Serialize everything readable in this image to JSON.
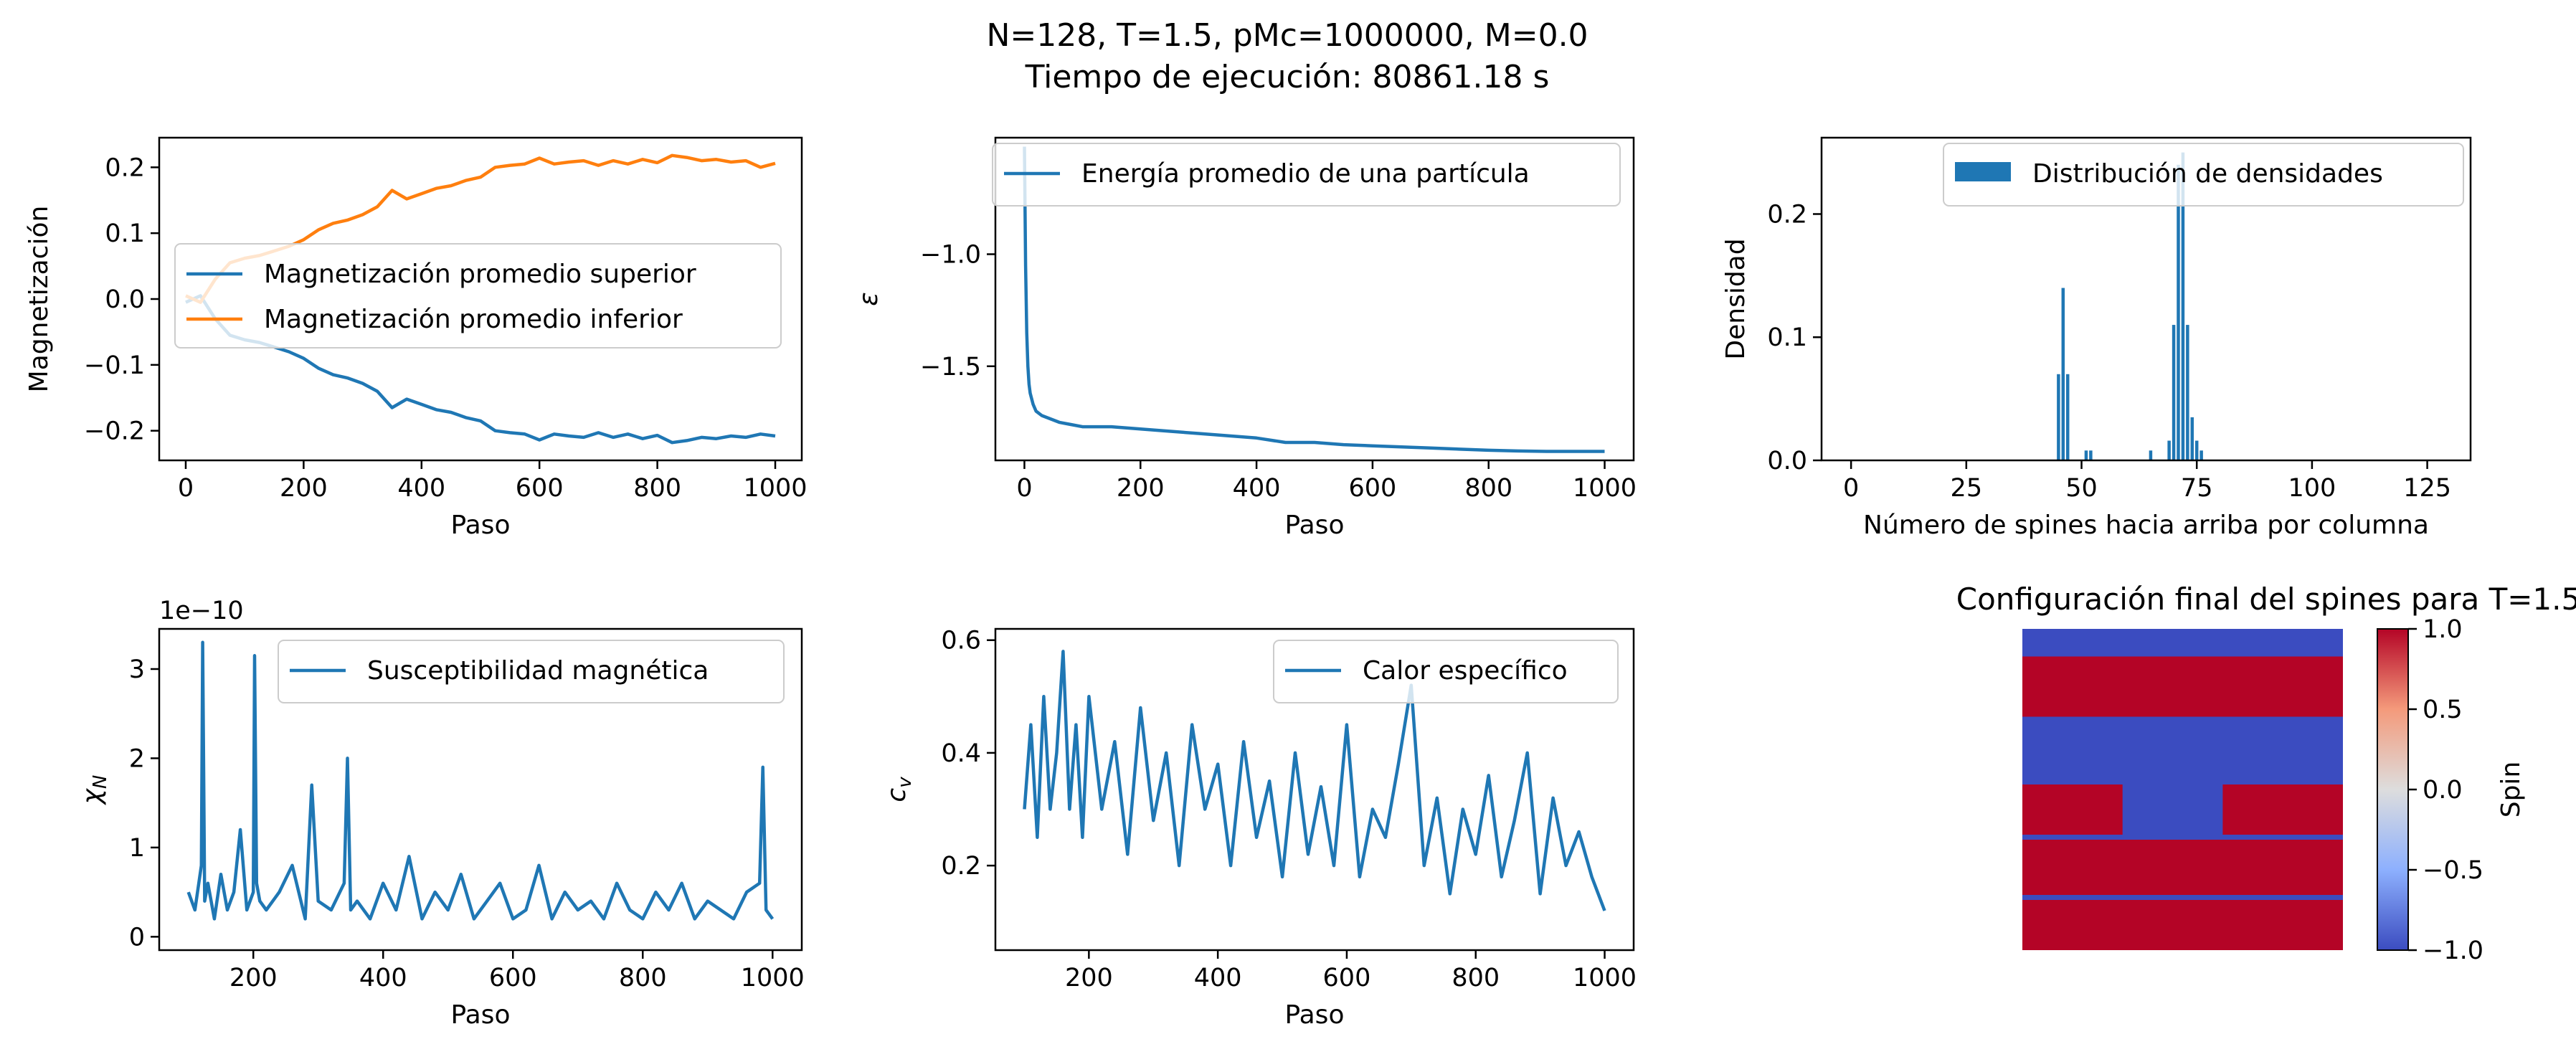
{
  "figure": {
    "title_line1": "N=128, T=1.5, pMc=1000000, M=0.0",
    "title_line2": "Tiempo de ejecución: 80861.18 s"
  },
  "colors": {
    "blue": "#1f77b4",
    "orange": "#ff7f0e",
    "spin_up": "#b40426",
    "spin_down": "#3b4cc0"
  },
  "chart_data": [
    {
      "id": "magnetization",
      "type": "line",
      "xlabel": "Paso",
      "ylabel": "Magnetización",
      "xlim": [
        -45,
        1045
      ],
      "ylim": [
        -0.245,
        0.245
      ],
      "xticks": [
        0,
        200,
        400,
        600,
        800,
        1000
      ],
      "yticks": [
        -0.2,
        -0.1,
        0.0,
        0.1,
        0.2
      ],
      "legend": "center-left",
      "series": [
        {
          "name": "Magnetización promedio superior",
          "color": "#1f77b4",
          "x": [
            0,
            25,
            50,
            75,
            100,
            125,
            150,
            175,
            200,
            225,
            250,
            275,
            300,
            325,
            350,
            375,
            400,
            425,
            450,
            475,
            500,
            525,
            550,
            575,
            600,
            625,
            650,
            675,
            700,
            725,
            750,
            775,
            800,
            825,
            850,
            875,
            900,
            925,
            950,
            975,
            1000
          ],
          "y": [
            -0.005,
            0.005,
            -0.03,
            -0.055,
            -0.062,
            -0.066,
            -0.073,
            -0.08,
            -0.09,
            -0.105,
            -0.115,
            -0.12,
            -0.128,
            -0.14,
            -0.165,
            -0.152,
            -0.16,
            -0.168,
            -0.172,
            -0.18,
            -0.185,
            -0.2,
            -0.203,
            -0.205,
            -0.214,
            -0.205,
            -0.208,
            -0.21,
            -0.203,
            -0.21,
            -0.205,
            -0.212,
            -0.207,
            -0.218,
            -0.215,
            -0.21,
            -0.212,
            -0.208,
            -0.21,
            -0.205,
            -0.208
          ]
        },
        {
          "name": "Magnetización promedio inferior",
          "color": "#ff7f0e",
          "x": [
            0,
            25,
            50,
            75,
            100,
            125,
            150,
            175,
            200,
            225,
            250,
            275,
            300,
            325,
            350,
            375,
            400,
            425,
            450,
            475,
            500,
            525,
            550,
            575,
            600,
            625,
            650,
            675,
            700,
            725,
            750,
            775,
            800,
            825,
            850,
            875,
            900,
            925,
            950,
            975,
            1000
          ],
          "y": [
            0.005,
            -0.005,
            0.03,
            0.055,
            0.062,
            0.066,
            0.073,
            0.08,
            0.09,
            0.105,
            0.115,
            0.12,
            0.128,
            0.14,
            0.165,
            0.152,
            0.16,
            0.168,
            0.172,
            0.18,
            0.185,
            0.2,
            0.203,
            0.205,
            0.214,
            0.205,
            0.208,
            0.21,
            0.203,
            0.21,
            0.205,
            0.212,
            0.207,
            0.218,
            0.215,
            0.21,
            0.212,
            0.208,
            0.21,
            0.2,
            0.206
          ]
        }
      ]
    },
    {
      "id": "energy",
      "type": "line",
      "xlabel": "Paso",
      "ylabel": "ε",
      "xlim": [
        -50,
        1050
      ],
      "ylim": [
        -1.92,
        -0.48
      ],
      "xticks": [
        0,
        200,
        400,
        600,
        800,
        1000
      ],
      "yticks": [
        -1.5,
        -1.0
      ],
      "legend": "top-right",
      "series": [
        {
          "name": "Energía promedio de una partícula",
          "color": "#1f77b4",
          "x": [
            0,
            2,
            4,
            6,
            8,
            10,
            15,
            20,
            30,
            40,
            60,
            80,
            100,
            150,
            200,
            250,
            300,
            350,
            400,
            450,
            500,
            550,
            600,
            650,
            700,
            750,
            800,
            850,
            900,
            950,
            1000
          ],
          "y": [
            -0.52,
            -1.05,
            -1.35,
            -1.5,
            -1.58,
            -1.62,
            -1.67,
            -1.7,
            -1.72,
            -1.73,
            -1.75,
            -1.76,
            -1.77,
            -1.77,
            -1.78,
            -1.79,
            -1.8,
            -1.81,
            -1.82,
            -1.84,
            -1.84,
            -1.85,
            -1.855,
            -1.86,
            -1.865,
            -1.87,
            -1.875,
            -1.878,
            -1.88,
            -1.88,
            -1.88
          ]
        }
      ]
    },
    {
      "id": "density",
      "type": "bar",
      "xlabel": "Número de spines hacia arriba por columna",
      "ylabel": "Densidad",
      "xlim": [
        -6.4,
        134.4
      ],
      "ylim": [
        0,
        0.262
      ],
      "xticks": [
        0,
        25,
        50,
        75,
        100,
        125
      ],
      "yticks": [
        0.0,
        0.1,
        0.2
      ],
      "legend": "top-right",
      "series": [
        {
          "name": "Distribución de densidades",
          "color": "#1f77b4",
          "x": [
            45,
            46,
            47,
            51,
            52,
            65,
            69,
            70,
            71,
            72,
            73,
            74,
            75,
            76
          ],
          "y": [
            0.07,
            0.14,
            0.07,
            0.008,
            0.008,
            0.008,
            0.016,
            0.11,
            0.24,
            0.25,
            0.11,
            0.035,
            0.016,
            0.008
          ]
        }
      ]
    },
    {
      "id": "susceptibility",
      "type": "line",
      "xlabel": "Paso",
      "ylabel": "χN",
      "offset_text": "1e−10",
      "xlim": [
        55,
        1045
      ],
      "ylim": [
        -0.15,
        3.45
      ],
      "xticks": [
        200,
        400,
        600,
        800,
        1000
      ],
      "yticks": [
        0,
        1,
        2,
        3
      ],
      "legend": "top-right",
      "series": [
        {
          "name": "Susceptibilidad magnética",
          "color": "#1f77b4",
          "x": [
            100,
            110,
            120,
            122,
            125,
            130,
            140,
            150,
            160,
            170,
            180,
            190,
            200,
            202,
            205,
            210,
            220,
            240,
            260,
            280,
            290,
            300,
            320,
            340,
            345,
            350,
            360,
            380,
            400,
            420,
            440,
            460,
            480,
            500,
            520,
            540,
            560,
            580,
            600,
            620,
            640,
            660,
            680,
            700,
            720,
            740,
            760,
            780,
            800,
            820,
            840,
            860,
            880,
            900,
            920,
            940,
            960,
            980,
            985,
            990,
            1000
          ],
          "y": [
            0.5,
            0.3,
            0.8,
            3.3,
            0.4,
            0.6,
            0.2,
            0.7,
            0.3,
            0.5,
            1.2,
            0.3,
            0.5,
            3.15,
            0.6,
            0.4,
            0.3,
            0.5,
            0.8,
            0.2,
            1.7,
            0.4,
            0.3,
            0.6,
            2.0,
            0.3,
            0.4,
            0.2,
            0.6,
            0.3,
            0.9,
            0.2,
            0.5,
            0.3,
            0.7,
            0.2,
            0.4,
            0.6,
            0.2,
            0.3,
            0.8,
            0.2,
            0.5,
            0.3,
            0.4,
            0.2,
            0.6,
            0.3,
            0.2,
            0.5,
            0.3,
            0.6,
            0.2,
            0.4,
            0.3,
            0.2,
            0.5,
            0.6,
            1.9,
            0.3,
            0.2
          ]
        }
      ]
    },
    {
      "id": "specific_heat",
      "type": "line",
      "xlabel": "Paso",
      "ylabel": "cv",
      "xlim": [
        55,
        1045
      ],
      "ylim": [
        0.05,
        0.62
      ],
      "xticks": [
        200,
        400,
        600,
        800,
        1000
      ],
      "yticks": [
        0.2,
        0.4,
        0.6
      ],
      "legend": "top-right",
      "series": [
        {
          "name": "Calor específico",
          "color": "#1f77b4",
          "x": [
            100,
            110,
            120,
            130,
            140,
            150,
            160,
            170,
            180,
            190,
            200,
            220,
            240,
            260,
            280,
            300,
            320,
            340,
            360,
            380,
            400,
            420,
            440,
            460,
            480,
            500,
            520,
            540,
            560,
            580,
            600,
            620,
            640,
            660,
            680,
            700,
            720,
            740,
            760,
            780,
            800,
            820,
            840,
            860,
            880,
            900,
            920,
            940,
            960,
            980,
            1000
          ],
          "y": [
            0.3,
            0.45,
            0.25,
            0.5,
            0.3,
            0.4,
            0.58,
            0.3,
            0.45,
            0.25,
            0.5,
            0.3,
            0.42,
            0.22,
            0.48,
            0.28,
            0.4,
            0.2,
            0.45,
            0.3,
            0.38,
            0.2,
            0.42,
            0.25,
            0.35,
            0.18,
            0.4,
            0.22,
            0.34,
            0.2,
            0.45,
            0.18,
            0.3,
            0.25,
            0.38,
            0.52,
            0.2,
            0.32,
            0.15,
            0.3,
            0.22,
            0.36,
            0.18,
            0.28,
            0.4,
            0.15,
            0.32,
            0.2,
            0.26,
            0.18,
            0.12
          ]
        }
      ]
    },
    {
      "id": "spin_configuration",
      "type": "heatmap",
      "title": "Configuración final del spines para T=1.5",
      "colorbar_label": "Spin",
      "colorbar_range": [
        -1.0,
        1.0
      ],
      "colorbar_ticks": [
        -1.0,
        -0.5,
        0.0,
        0.5,
        1.0
      ],
      "cmap": "coolwarm",
      "grid_size": 128,
      "rows_spin_up_ranges": [
        [
          11,
          35
        ],
        [
          84,
          106
        ],
        [
          108,
          128
        ]
      ],
      "rows_partial_up": {
        "rows": [
          62,
          82
        ],
        "cols_up": [
          [
            0,
            40
          ],
          [
            80,
            128
          ]
        ]
      }
    }
  ]
}
